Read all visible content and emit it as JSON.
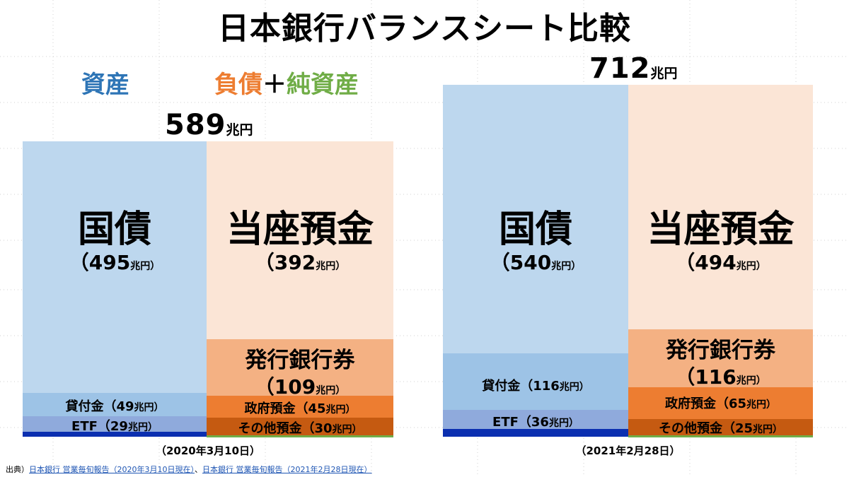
{
  "title": "日本銀行バランスシート比較",
  "legend": {
    "assets": {
      "label": "資産",
      "color": "#2e75b6"
    },
    "liabilities": {
      "label": "負債",
      "color": "#ed7d31"
    },
    "plus": "＋",
    "net_assets": {
      "label": "純資産",
      "color": "#70ad47"
    }
  },
  "colors": {
    "jgb": "#bdd7ee",
    "loans": "#9dc3e6",
    "etf": "#8faadc",
    "asset_other": "#0b2fb0",
    "current_deposits": "#fbe5d6",
    "banknotes": "#f4b183",
    "gov_deposits": "#ed7d31",
    "other_deposits": "#c55a11",
    "net_assets": "#70ad47"
  },
  "panels": [
    {
      "date": "（2020年3月10日）",
      "total": {
        "num": "589",
        "unit": "兆円"
      },
      "assets": {
        "jgb": {
          "name": "国債",
          "value": "（495",
          "unit": "兆円）"
        },
        "loans": {
          "text": "貸付金（49",
          "unit": "兆円）"
        },
        "etf": {
          "text": "ETF（29",
          "unit": "兆円）"
        }
      },
      "liabilities": {
        "current_deposits": {
          "name": "当座預金",
          "value": "（392",
          "unit": "兆円）"
        },
        "banknotes": {
          "name": "発行銀行券",
          "value": "（109",
          "unit": "兆円）"
        },
        "gov_deposits": {
          "text": "政府預金（45",
          "unit": "兆円）"
        },
        "other_deposits": {
          "text": "その他預金（30",
          "unit": "兆円）"
        }
      }
    },
    {
      "date": "（2021年2月28日）",
      "total": {
        "num": "712",
        "unit": "兆円"
      },
      "assets": {
        "jgb": {
          "name": "国債",
          "value": "（540",
          "unit": "兆円）"
        },
        "loans": {
          "text": "貸付金（116",
          "unit": "兆円）"
        },
        "etf": {
          "text": "ETF（36",
          "unit": "兆円）"
        }
      },
      "liabilities": {
        "current_deposits": {
          "name": "当座預金",
          "value": "（494",
          "unit": "兆円）"
        },
        "banknotes": {
          "name": "発行銀行券",
          "value": "（116",
          "unit": "兆円）"
        },
        "gov_deposits": {
          "text": "政府預金（65",
          "unit": "兆円）"
        },
        "other_deposits": {
          "text": "その他預金（25",
          "unit": "兆円）"
        }
      }
    }
  ],
  "source": {
    "prefix": "出典）",
    "link1": "日本銀行 営業毎旬報告（2020年3月10日現在）",
    "sep": "、",
    "link2": "日本銀行 営業毎旬報告（2021年2月28日現在）"
  },
  "chart_data": {
    "type": "bar",
    "title": "日本銀行バランスシート比較",
    "unit": "兆円",
    "categories": [
      "2020年3月10日",
      "2021年2月28日"
    ],
    "totals": [
      589,
      712
    ],
    "assets": [
      {
        "name": "国債",
        "values": [
          495,
          540
        ]
      },
      {
        "name": "貸付金",
        "values": [
          49,
          116
        ]
      },
      {
        "name": "ETF",
        "values": [
          29,
          36
        ]
      }
    ],
    "liabilities_and_net_assets": [
      {
        "name": "当座預金",
        "values": [
          392,
          494
        ]
      },
      {
        "name": "発行銀行券",
        "values": [
          109,
          116
        ]
      },
      {
        "name": "政府預金",
        "values": [
          45,
          65
        ]
      },
      {
        "name": "その他預金",
        "values": [
          30,
          25
        ]
      }
    ]
  }
}
